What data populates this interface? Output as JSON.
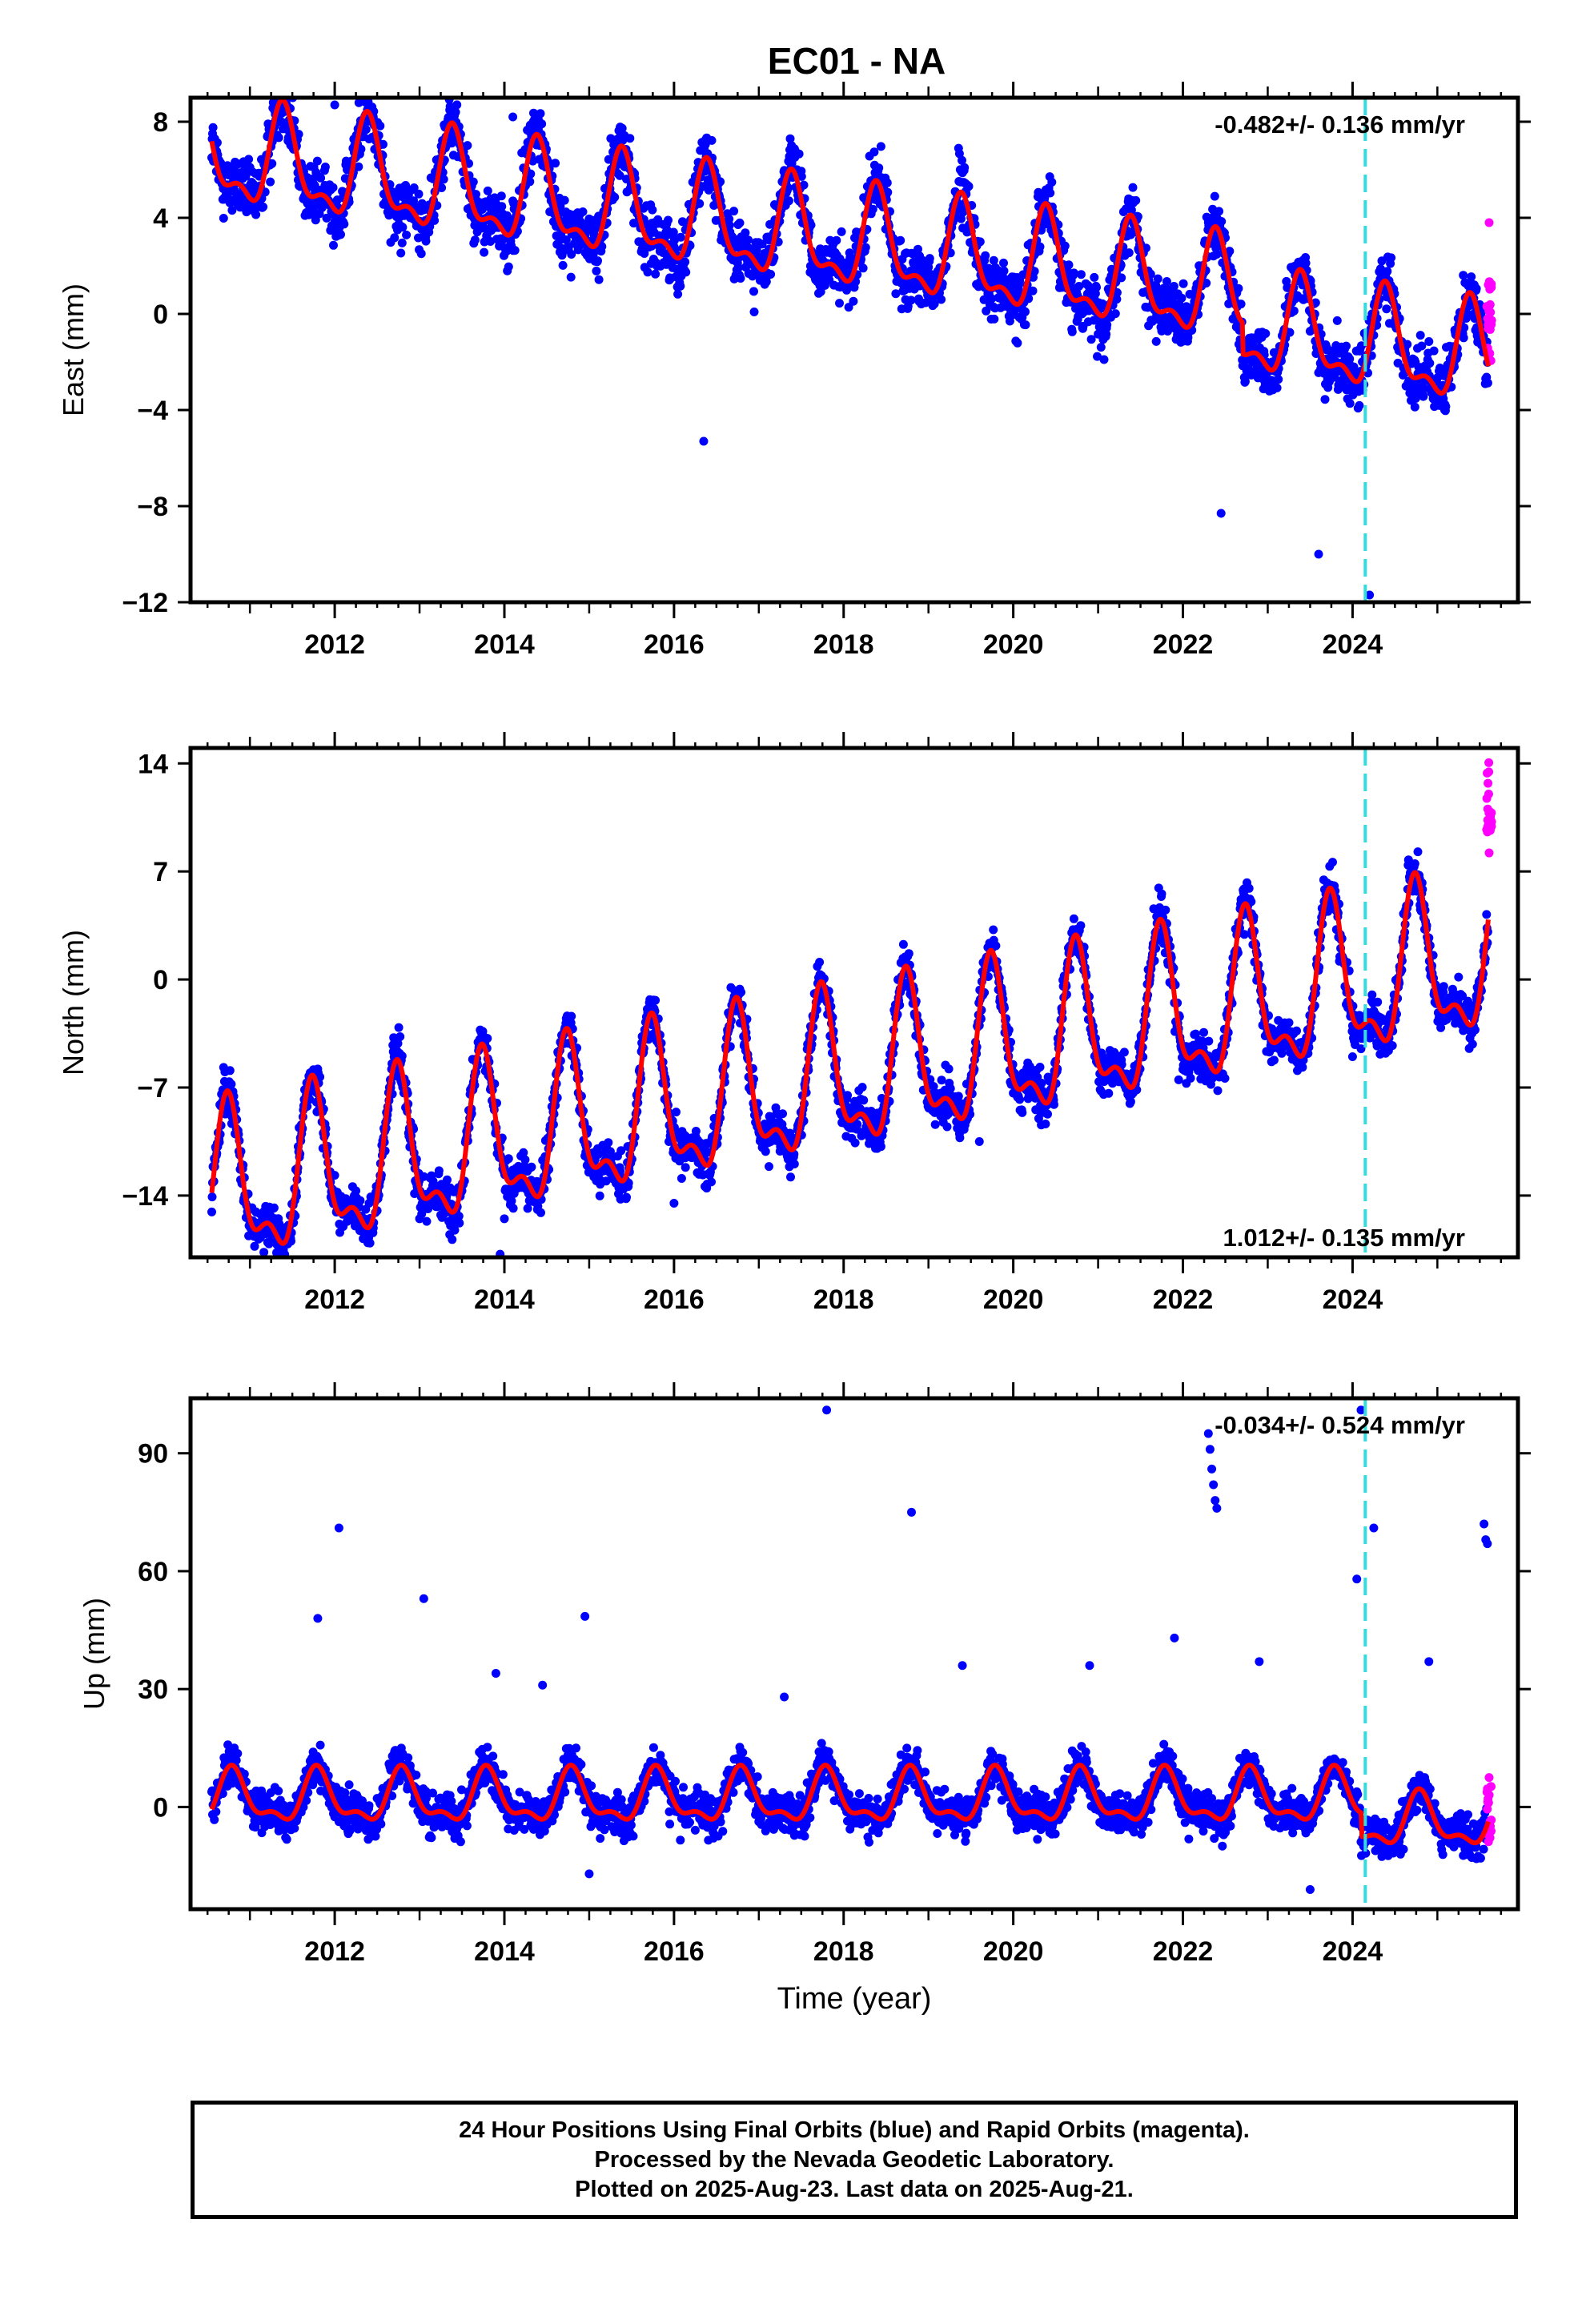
{
  "title": "EC01 - NA",
  "colors": {
    "final_orbits": "#0000ff",
    "rapid_orbits": "#ff00ff",
    "fit": "#ff0000",
    "marker": "#33dddd"
  },
  "chart_data": [
    {
      "type": "scatter",
      "name": "east",
      "ylabel": "East (mm)",
      "xlabel": "",
      "xlim": [
        2010.3,
        2025.95
      ],
      "ylim": [
        -12,
        9
      ],
      "yticks": [
        8,
        4,
        0,
        -4,
        -8,
        -12
      ],
      "ytick_labels": [
        "8",
        "4",
        "0",
        "−4",
        "−8",
        "−12"
      ],
      "xticks": [
        2012,
        2014,
        2016,
        2018,
        2020,
        2022,
        2024
      ],
      "xtick_labels": [
        "2012",
        "2014",
        "2016",
        "2018",
        "2020",
        "2022",
        "2024"
      ],
      "annotation": "-0.482+/- 0.136 mm/yr",
      "marker_line_x": 2024.15,
      "model": {
        "start": 2010.55,
        "end": 2025.6,
        "offset": 3.0,
        "trend": -0.48,
        "amplitude": 1.9,
        "phase": 0.15,
        "noise": 1.2,
        "anomaly_start": 2022.7,
        "anomaly_amount": -1.3
      },
      "rapid_orbits": {
        "start": 2025.58,
        "end": 2025.64,
        "ymin": -2.0,
        "ymax": 1.5,
        "extra": [
          3.8
        ]
      },
      "outliers": [
        [
          2012.0,
          8.7
        ],
        [
          2014.1,
          8.2
        ],
        [
          2023.6,
          -10.0
        ],
        [
          2024.2,
          -11.7
        ],
        [
          2022.45,
          -8.3
        ],
        [
          2016.35,
          -5.3
        ]
      ],
      "grid": false,
      "legend": "none"
    },
    {
      "type": "scatter",
      "name": "north",
      "ylabel": "North (mm)",
      "xlabel": "",
      "xlim": [
        2010.3,
        2025.95
      ],
      "ylim": [
        -18,
        15
      ],
      "yticks": [
        14,
        7,
        0,
        -7,
        -14
      ],
      "ytick_labels": [
        "14",
        "7",
        "0",
        "−7",
        "−14"
      ],
      "xticks": [
        2012,
        2014,
        2016,
        2018,
        2020,
        2022,
        2024
      ],
      "xtick_labels": [
        "2012",
        "2014",
        "2016",
        "2018",
        "2020",
        "2022",
        "2024"
      ],
      "annotation": "1.012+/- 0.135 mm/yr",
      "marker_line_x": 2024.15,
      "model": {
        "start": 2010.55,
        "end": 2025.6,
        "offset": -6.5,
        "trend": 1.01,
        "amplitude": 4.6,
        "phase": 0.5,
        "noise": 1.4,
        "anomaly_start": 2100,
        "anomaly_amount": 0
      },
      "rapid_orbits": {
        "start": 2025.58,
        "end": 2025.64,
        "ymin": 9.5,
        "ymax": 14.5,
        "extra": [
          8.2
        ]
      },
      "outliers": [
        [
          2013.0,
          -15.5
        ],
        [
          2013.95,
          -17.8
        ],
        [
          2014.0,
          -15.5
        ],
        [
          2016.0,
          -14.5
        ],
        [
          2019.6,
          -10.5
        ],
        [
          2021.95,
          -6.5
        ],
        [
          2023.05,
          -3.2
        ],
        [
          2024.0,
          -5.0
        ],
        [
          2024.05,
          -2.5
        ]
      ],
      "grid": false,
      "legend": "none"
    },
    {
      "type": "scatter",
      "name": "up",
      "ylabel": "Up (mm)",
      "xlabel": "Time (year)",
      "xlim": [
        2010.3,
        2025.95
      ],
      "ylim": [
        -26,
        104
      ],
      "yticks": [
        90,
        60,
        30,
        0
      ],
      "ytick_labels": [
        "90",
        "60",
        "30",
        "0"
      ],
      "xticks": [
        2012,
        2014,
        2016,
        2018,
        2020,
        2022,
        2024
      ],
      "xtick_labels": [
        "2012",
        "2014",
        "2016",
        "2018",
        "2020",
        "2022",
        "2024"
      ],
      "annotation": "-0.034+/- 0.524 mm/yr",
      "marker_line_x": 2024.15,
      "model": {
        "start": 2010.55,
        "end": 2025.6,
        "offset": 2.0,
        "trend": 0.0,
        "amplitude": 6.0,
        "phase": 0.55,
        "noise": 4.5,
        "anomaly_start": 2024.1,
        "anomaly_amount": -6.0
      },
      "rapid_orbits": {
        "start": 2025.58,
        "end": 2025.64,
        "ymin": -9.0,
        "ymax": 6.0,
        "extra": [
          7.5
        ]
      },
      "outliers": [
        [
          2011.8,
          48
        ],
        [
          2012.05,
          71
        ],
        [
          2013.05,
          53
        ],
        [
          2014.95,
          48.5
        ],
        [
          2017.8,
          101
        ],
        [
          2018.8,
          75
        ],
        [
          2022.3,
          95
        ],
        [
          2022.32,
          91
        ],
        [
          2022.34,
          86
        ],
        [
          2022.36,
          82
        ],
        [
          2022.38,
          78
        ],
        [
          2022.4,
          76
        ],
        [
          2024.1,
          101
        ],
        [
          2024.05,
          58
        ],
        [
          2024.25,
          71
        ],
        [
          2025.55,
          72
        ],
        [
          2025.57,
          68
        ],
        [
          2025.59,
          67
        ],
        [
          2013.9,
          34
        ],
        [
          2014.45,
          31
        ],
        [
          2017.3,
          28
        ],
        [
          2019.4,
          36
        ],
        [
          2020.9,
          36
        ],
        [
          2021.9,
          43
        ],
        [
          2022.9,
          37
        ],
        [
          2024.9,
          37
        ],
        [
          2023.5,
          -21
        ],
        [
          2015.0,
          -17
        ]
      ],
      "grid": false,
      "legend": "none"
    }
  ],
  "footer": {
    "line1": "24 Hour Positions Using Final Orbits (blue) and Rapid Orbits (magenta).",
    "line2": "Processed by the Nevada Geodetic Laboratory.",
    "line3": "Plotted on 2025-Aug-23. Last data on 2025-Aug-21."
  }
}
